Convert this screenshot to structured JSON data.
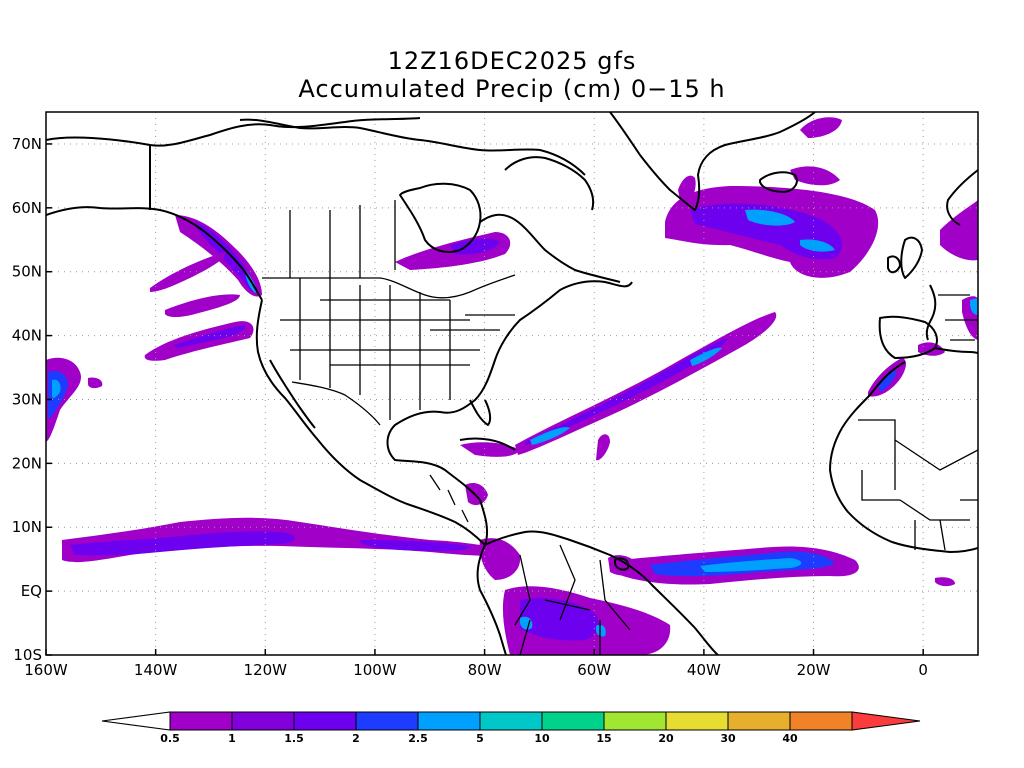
{
  "title": {
    "line1": "12Z16DEC2025 gfs",
    "line2": "Accumulated Precip (cm) 0−15 h"
  },
  "axes": {
    "lon_labels": [
      "160W",
      "140W",
      "120W",
      "100W",
      "80W",
      "60W",
      "40W",
      "20W",
      "0"
    ],
    "lon_values": [
      -160,
      -140,
      -120,
      -100,
      -80,
      -60,
      -40,
      -20,
      0
    ],
    "lat_labels": [
      "10S",
      "EQ",
      "10N",
      "20N",
      "30N",
      "40N",
      "50N",
      "60N",
      "70N"
    ],
    "lat_values": [
      -10,
      0,
      10,
      20,
      30,
      40,
      50,
      60,
      70
    ],
    "lon_range": [
      -160,
      10
    ],
    "lat_range": [
      -10,
      75
    ],
    "grid": true
  },
  "colorbar": {
    "labels": [
      "0.5",
      "1",
      "1.5",
      "2",
      "2.5",
      "5",
      "10",
      "15",
      "20",
      "30",
      "40"
    ],
    "colors": [
      "#a000c8",
      "#8200dc",
      "#6e00f0",
      "#1e3cff",
      "#00a0ff",
      "#00c8c8",
      "#00d28c",
      "#a0e632",
      "#e6dc32",
      "#e6af2d",
      "#f08228",
      "#fa3c3c"
    ]
  },
  "precip_colors": {
    "p1": "#a000c8",
    "p2": "#8200dc",
    "p3": "#6e00f0",
    "p4": "#1e3cff",
    "p5": "#00a0ff",
    "p6": "#00c8c8"
  }
}
